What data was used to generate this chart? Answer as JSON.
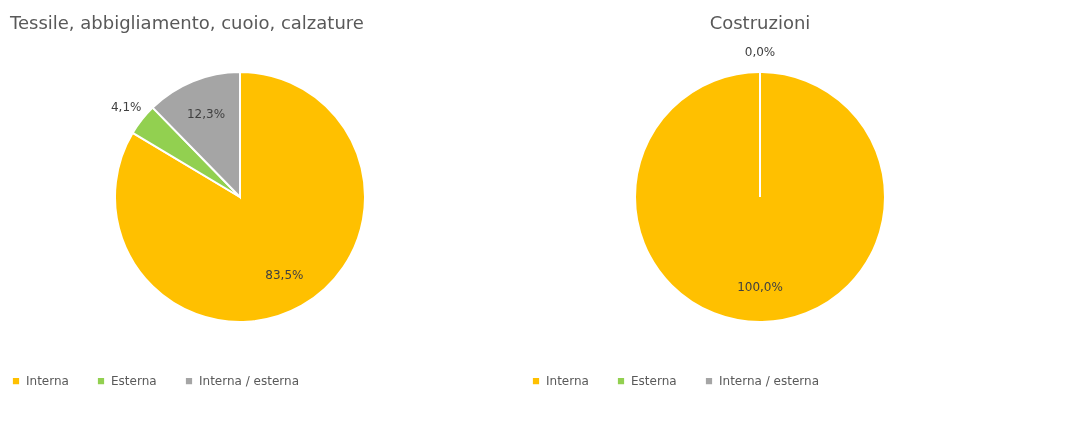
{
  "chart_data": [
    {
      "type": "pie",
      "title": "Tessile, abbigliamento, cuoio, calzature",
      "categories": [
        "Interna",
        "Esterna",
        "Interna / esterna"
      ],
      "values": [
        83.5,
        4.1,
        12.3
      ],
      "colors": [
        "#ffc000",
        "#92d050",
        "#a5a5a5"
      ],
      "value_labels": [
        "83,5%",
        "4,1%",
        "12,3%"
      ],
      "legend": "bottom"
    },
    {
      "type": "pie",
      "title": "Costruzioni",
      "categories": [
        "Interna",
        "Esterna",
        "Interna / esterna"
      ],
      "values": [
        100.0,
        0.0,
        0.0
      ],
      "colors": [
        "#ffc000",
        "#92d050",
        "#a5a5a5"
      ],
      "value_labels": [
        "100,0%",
        null,
        "0,0%"
      ],
      "legend": "bottom"
    }
  ]
}
